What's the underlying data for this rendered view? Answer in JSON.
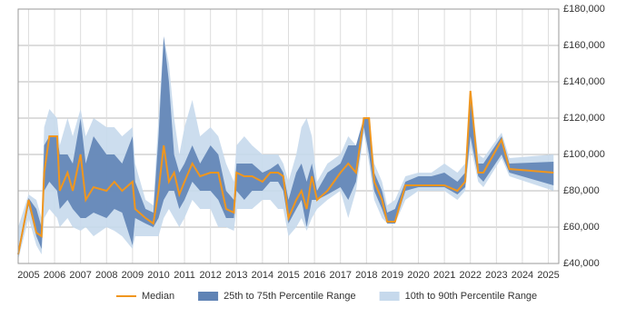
{
  "chart_data": {
    "type": "line",
    "xlim": [
      2004.6,
      2025.4
    ],
    "xticks": [
      2005,
      2006,
      2007,
      2008,
      2009,
      2010,
      2011,
      2012,
      2013,
      2014,
      2015,
      2016,
      2017,
      2018,
      2019,
      2020,
      2021,
      2022,
      2023,
      2024,
      2025
    ],
    "ylim": [
      40000,
      180000
    ],
    "yticks": [
      {
        "value": 40000,
        "label": "£40,000"
      },
      {
        "value": 60000,
        "label": "£60,000"
      },
      {
        "value": 80000,
        "label": "£80,000"
      },
      {
        "value": 100000,
        "label": "£100,000"
      },
      {
        "value": 120000,
        "label": "£120,000"
      },
      {
        "value": 140000,
        "label": "£140,000"
      },
      {
        "value": 160000,
        "label": "£160,000"
      },
      {
        "value": 180000,
        "label": "£180,000"
      }
    ],
    "grid": true,
    "legend": "bottom",
    "x": [
      2004.6,
      2005.0,
      2005.3,
      2005.5,
      2005.6,
      2005.8,
      2006.1,
      2006.2,
      2006.5,
      2006.7,
      2007.0,
      2007.2,
      2007.5,
      2008.0,
      2008.3,
      2008.6,
      2009.0,
      2009.1,
      2009.5,
      2009.8,
      2010.0,
      2010.2,
      2010.4,
      2010.6,
      2010.8,
      2011.0,
      2011.3,
      2011.6,
      2012.0,
      2012.3,
      2012.6,
      2012.9,
      2013.0,
      2013.3,
      2013.6,
      2014.0,
      2014.3,
      2014.6,
      2014.8,
      2015.0,
      2015.3,
      2015.5,
      2015.7,
      2015.9,
      2016.1,
      2016.5,
      2017.0,
      2017.3,
      2017.6,
      2017.9,
      2018.1,
      2018.3,
      2018.6,
      2018.8,
      2019.1,
      2019.5,
      2020.0,
      2020.5,
      2021.0,
      2021.5,
      2021.8,
      2022.0,
      2022.3,
      2022.5,
      2023.2,
      2023.5,
      2025.2
    ],
    "series": [
      {
        "name": "Median",
        "color": "#f0961e",
        "values": [
          45000,
          75000,
          57000,
          55000,
          90000,
          110000,
          110000,
          80000,
          90000,
          80000,
          100000,
          75000,
          82000,
          80000,
          85000,
          80000,
          85000,
          70000,
          65000,
          62000,
          80000,
          105000,
          85000,
          90000,
          78000,
          85000,
          95000,
          88000,
          90000,
          90000,
          70000,
          68000,
          90000,
          88000,
          88000,
          85000,
          90000,
          90000,
          88000,
          65000,
          75000,
          80000,
          70000,
          88000,
          75000,
          80000,
          90000,
          95000,
          90000,
          120000,
          120000,
          85000,
          75000,
          63000,
          63000,
          83000,
          83000,
          83000,
          83000,
          80000,
          85000,
          135000,
          90000,
          90000,
          108000,
          92000,
          90000
        ]
      },
      {
        "name": "25th to 75th Percentile Range",
        "color": "#5f83b5",
        "low": [
          43000,
          72000,
          55000,
          48000,
          80000,
          85000,
          80000,
          70000,
          75000,
          70000,
          65000,
          65000,
          68000,
          65000,
          70000,
          68000,
          50000,
          65000,
          62000,
          60000,
          65000,
          75000,
          80000,
          80000,
          70000,
          75000,
          85000,
          80000,
          80000,
          75000,
          65000,
          65000,
          80000,
          75000,
          80000,
          80000,
          85000,
          85000,
          80000,
          62000,
          70000,
          75000,
          60000,
          75000,
          75000,
          78000,
          82000,
          75000,
          85000,
          115000,
          100000,
          80000,
          70000,
          62000,
          62000,
          80000,
          82000,
          82000,
          82000,
          78000,
          82000,
          110000,
          88000,
          85000,
          100000,
          90000,
          83000
        ],
        "high": [
          48000,
          76000,
          70000,
          60000,
          105000,
          110000,
          110000,
          100000,
          100000,
          95000,
          120000,
          95000,
          110000,
          100000,
          100000,
          95000,
          110000,
          85000,
          70000,
          68000,
          110000,
          165000,
          140000,
          100000,
          90000,
          95000,
          105000,
          95000,
          105000,
          100000,
          80000,
          75000,
          95000,
          95000,
          95000,
          90000,
          92000,
          95000,
          90000,
          75000,
          90000,
          95000,
          85000,
          95000,
          80000,
          90000,
          95000,
          105000,
          105000,
          120000,
          120000,
          90000,
          80000,
          68000,
          70000,
          85000,
          88000,
          88000,
          90000,
          85000,
          90000,
          135000,
          95000,
          95000,
          110000,
          95000,
          96000
        ]
      },
      {
        "name": "10th to 90th Percentile Range",
        "color": "#c6d9ec",
        "low": [
          42000,
          65000,
          50000,
          45000,
          65000,
          70000,
          65000,
          60000,
          65000,
          60000,
          58000,
          60000,
          55000,
          60000,
          58000,
          55000,
          48000,
          55000,
          55000,
          55000,
          55000,
          65000,
          70000,
          65000,
          60000,
          65000,
          75000,
          70000,
          70000,
          60000,
          60000,
          58000,
          70000,
          70000,
          70000,
          75000,
          75000,
          70000,
          70000,
          55000,
          60000,
          65000,
          58000,
          65000,
          70000,
          75000,
          80000,
          65000,
          80000,
          112000,
          95000,
          75000,
          65000,
          62000,
          62000,
          75000,
          80000,
          80000,
          80000,
          75000,
          80000,
          105000,
          85000,
          82000,
          98000,
          88000,
          80000
        ],
        "high": [
          60000,
          78000,
          75000,
          65000,
          115000,
          125000,
          120000,
          105000,
          120000,
          110000,
          125000,
          110000,
          120000,
          115000,
          115000,
          110000,
          115000,
          95000,
          75000,
          72000,
          120000,
          165000,
          150000,
          120000,
          100000,
          115000,
          130000,
          110000,
          115000,
          110000,
          95000,
          85000,
          105000,
          110000,
          105000,
          100000,
          100000,
          100000,
          95000,
          85000,
          100000,
          115000,
          120000,
          110000,
          85000,
          95000,
          100000,
          110000,
          105000,
          120000,
          120000,
          95000,
          85000,
          72000,
          75000,
          88000,
          90000,
          90000,
          95000,
          90000,
          95000,
          135000,
          100000,
          98000,
          112000,
          98000,
          100000
        ]
      }
    ]
  }
}
